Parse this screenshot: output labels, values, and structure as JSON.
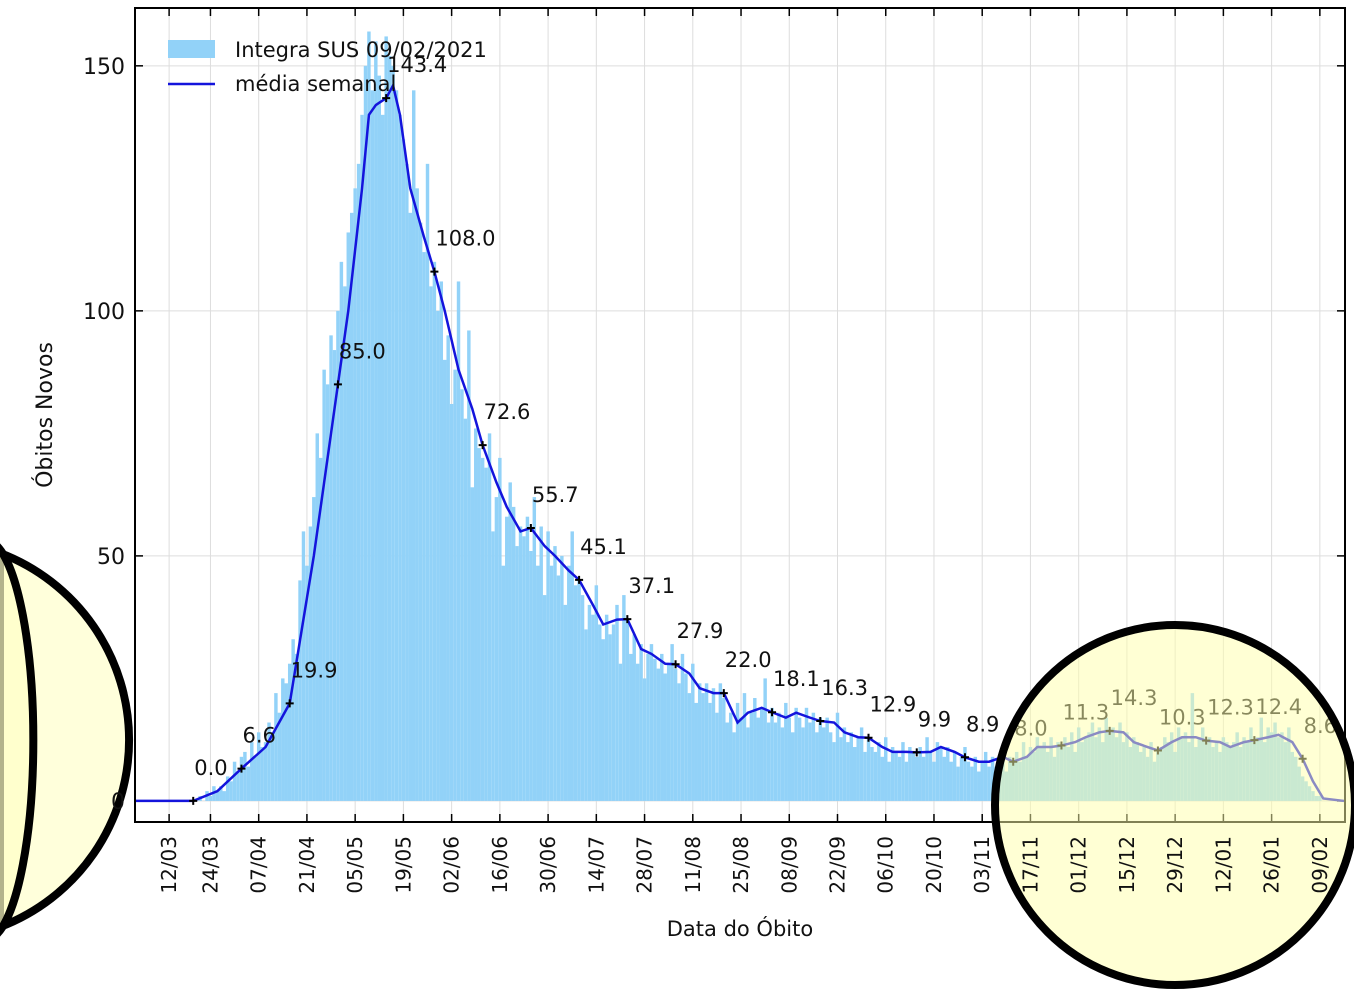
{
  "chart_data": {
    "type": "bar",
    "xlabel": "Data do Óbito",
    "ylabel": "Óbitos Novos",
    "xlim": [
      -9.9,
      341.3
    ],
    "ylim": [
      -4.3,
      161.8
    ],
    "xticks": [
      {
        "value": 0,
        "label": "12/03"
      },
      {
        "value": 12,
        "label": "24/03"
      },
      {
        "value": 26,
        "label": "07/04"
      },
      {
        "value": 40,
        "label": "21/04"
      },
      {
        "value": 54,
        "label": "05/05"
      },
      {
        "value": 68,
        "label": "19/05"
      },
      {
        "value": 82,
        "label": "02/06"
      },
      {
        "value": 96,
        "label": "16/06"
      },
      {
        "value": 110,
        "label": "30/06"
      },
      {
        "value": 124,
        "label": "14/07"
      },
      {
        "value": 138,
        "label": "28/07"
      },
      {
        "value": 152,
        "label": "11/08"
      },
      {
        "value": 166,
        "label": "25/08"
      },
      {
        "value": 180,
        "label": "08/09"
      },
      {
        "value": 194,
        "label": "22/09"
      },
      {
        "value": 208,
        "label": "06/10"
      },
      {
        "value": 222,
        "label": "20/10"
      },
      {
        "value": 236,
        "label": "03/11"
      },
      {
        "value": 250,
        "label": "17/11"
      },
      {
        "value": 264,
        "label": "01/12"
      },
      {
        "value": 278,
        "label": "15/12"
      },
      {
        "value": 292,
        "label": "29/12"
      },
      {
        "value": 306,
        "label": "12/01"
      },
      {
        "value": 320,
        "label": "26/01"
      },
      {
        "value": 334,
        "label": "09/02"
      }
    ],
    "yticks": [
      0,
      50,
      100,
      150
    ],
    "grid": true,
    "legend": "upper left",
    "series": [
      {
        "name": "Integra SUS 09/02/2021",
        "type": "bar",
        "color": "#92d2f8",
        "x": [
          8,
          9,
          10,
          11,
          12,
          13,
          14,
          15,
          16,
          17,
          18,
          19,
          20,
          21,
          22,
          23,
          24,
          25,
          26,
          27,
          28,
          29,
          30,
          31,
          32,
          33,
          34,
          35,
          36,
          37,
          38,
          39,
          40,
          41,
          42,
          43,
          44,
          45,
          46,
          47,
          48,
          49,
          50,
          51,
          52,
          53,
          54,
          55,
          56,
          57,
          58,
          59,
          60,
          61,
          62,
          63,
          64,
          65,
          66,
          67,
          68,
          69,
          70,
          71,
          72,
          73,
          74,
          75,
          76,
          77,
          78,
          79,
          80,
          81,
          82,
          83,
          84,
          85,
          86,
          87,
          88,
          89,
          90,
          91,
          92,
          93,
          94,
          95,
          96,
          97,
          98,
          99,
          100,
          101,
          102,
          103,
          104,
          105,
          106,
          107,
          108,
          109,
          110,
          111,
          112,
          113,
          114,
          115,
          116,
          117,
          118,
          119,
          120,
          121,
          122,
          123,
          124,
          125,
          126,
          127,
          128,
          129,
          130,
          131,
          132,
          133,
          134,
          135,
          136,
          137,
          138,
          139,
          140,
          141,
          142,
          143,
          144,
          145,
          146,
          147,
          148,
          149,
          150,
          151,
          152,
          153,
          154,
          155,
          156,
          157,
          158,
          159,
          160,
          161,
          162,
          163,
          164,
          165,
          166,
          167,
          168,
          169,
          170,
          171,
          172,
          173,
          174,
          175,
          176,
          177,
          178,
          179,
          180,
          181,
          182,
          183,
          184,
          185,
          186,
          187,
          188,
          189,
          190,
          191,
          192,
          193,
          194,
          195,
          196,
          197,
          198,
          199,
          200,
          201,
          202,
          203,
          204,
          205,
          206,
          207,
          208,
          209,
          210,
          211,
          212,
          213,
          214,
          215,
          216,
          217,
          218,
          219,
          220,
          221,
          222,
          223,
          224,
          225,
          226,
          227,
          228,
          229,
          230,
          231,
          232,
          233,
          234,
          235,
          236,
          237,
          238,
          239,
          240,
          241,
          242,
          243,
          244,
          245,
          246,
          247,
          248,
          249,
          250,
          251,
          252,
          253,
          254,
          255,
          256,
          257,
          258,
          259,
          260,
          261,
          262,
          263,
          264,
          265,
          266,
          267,
          268,
          269,
          270,
          271,
          272,
          273,
          274,
          275,
          276,
          277,
          278,
          279,
          280,
          281,
          282,
          283,
          284,
          285,
          286,
          287,
          288,
          289,
          290,
          291,
          292,
          293,
          294,
          295,
          296,
          297,
          298,
          299,
          300,
          301,
          302,
          303,
          304,
          305,
          306,
          307,
          308,
          309,
          310,
          311,
          312,
          313,
          314,
          315,
          316,
          317,
          318,
          319,
          320,
          321,
          322,
          323,
          324,
          325,
          326,
          327,
          328,
          329,
          330,
          331,
          332,
          333,
          334,
          335,
          336
        ],
        "values": [
          0,
          1,
          0,
          2,
          1,
          3,
          2,
          3,
          2,
          5,
          4,
          8,
          6,
          9,
          10,
          7,
          12,
          9,
          14,
          11,
          12,
          16,
          14,
          22,
          18,
          25,
          24,
          28,
          33,
          30,
          45,
          55,
          48,
          56,
          62,
          75,
          70,
          88,
          85,
          95,
          92,
          100,
          110,
          105,
          116,
          120,
          125,
          130,
          140,
          150,
          157,
          145,
          155,
          148,
          140,
          156,
          152,
          150,
          145,
          140,
          135,
          130,
          120,
          145,
          125,
          118,
          112,
          130,
          105,
          110,
          100,
          106,
          90,
          95,
          81,
          88,
          106,
          84,
          78,
          96,
          64,
          76,
          72,
          70,
          68,
          75,
          55,
          62,
          70,
          48,
          58,
          65,
          60,
          52,
          56,
          54,
          58,
          51,
          62,
          48,
          56,
          42,
          55,
          48,
          52,
          46,
          50,
          40,
          48,
          55,
          44,
          45,
          42,
          35,
          40,
          38,
          44,
          36,
          33,
          38,
          34,
          36,
          40,
          28,
          42,
          37,
          30,
          34,
          28,
          32,
          25,
          30,
          32,
          29,
          27,
          30,
          26,
          28,
          32,
          27,
          24,
          30,
          26,
          22,
          28,
          20,
          24,
          22,
          24,
          20,
          23,
          18,
          24,
          21,
          16,
          18,
          14,
          20,
          17,
          22,
          15,
          18,
          21,
          17,
          19,
          25,
          16,
          19,
          16,
          18,
          15,
          20,
          17,
          14,
          19,
          17,
          15,
          19,
          16,
          18,
          14,
          17,
          15,
          17,
          14,
          12,
          18,
          13,
          15,
          12,
          14,
          11,
          13,
          15,
          10,
          13,
          11,
          10,
          12,
          9,
          13,
          8,
          11,
          10,
          9,
          12,
          8,
          11,
          10,
          9,
          11,
          9,
          13,
          10,
          8,
          12,
          11,
          9,
          11,
          8,
          10,
          7,
          9,
          11,
          8,
          7,
          9,
          6,
          8,
          10,
          7,
          9,
          7,
          8,
          10,
          6,
          9,
          8,
          10,
          8,
          12,
          9,
          11,
          10,
          13,
          11,
          12,
          10,
          13,
          9,
          12,
          11,
          13,
          11,
          14,
          10,
          15,
          12,
          13,
          14,
          16,
          13,
          15,
          12,
          17,
          14,
          15,
          13,
          16,
          12,
          14,
          11,
          13,
          12,
          10,
          11,
          9,
          12,
          8,
          10,
          11,
          13,
          12,
          14,
          10,
          15,
          13,
          14,
          12,
          22,
          11,
          13,
          15,
          12,
          13,
          11,
          12,
          10,
          13,
          12,
          11,
          12,
          14,
          11,
          13,
          12,
          15,
          12,
          13,
          17,
          12,
          15,
          14,
          16,
          13,
          14,
          12,
          15,
          10,
          9,
          7,
          5,
          4,
          3,
          2,
          1,
          1,
          0,
          0
        ]
      },
      {
        "name": "média  semanal",
        "type": "line",
        "color": "#1414dc",
        "x": [
          -10,
          7,
          14,
          21,
          28,
          35,
          42,
          49,
          52,
          56,
          58,
          60,
          63,
          65,
          67,
          70,
          74,
          77,
          80,
          84,
          88,
          91,
          95,
          98,
          102,
          105,
          109,
          112,
          116,
          119,
          123,
          126,
          130,
          133,
          137,
          140,
          144,
          147,
          151,
          154,
          158,
          161,
          165,
          168,
          172,
          175,
          179,
          182,
          186,
          189,
          193,
          196,
          200,
          203,
          207,
          210,
          214,
          217,
          221,
          224,
          228,
          231,
          235,
          238,
          242,
          245,
          249,
          252,
          256,
          259,
          263,
          266,
          270,
          273,
          277,
          280,
          284,
          287,
          291,
          294,
          298,
          301,
          305,
          308,
          312,
          315,
          319,
          322,
          326,
          329,
          332,
          335,
          341
        ],
        "values": [
          0,
          0,
          2,
          6.6,
          11,
          19.9,
          50,
          85,
          100,
          125,
          140,
          142,
          143.4,
          146,
          140,
          125,
          115,
          108,
          100,
          88,
          80,
          72.6,
          65,
          60,
          55,
          55.7,
          52,
          50,
          47,
          45.1,
          40,
          36,
          37,
          37.1,
          31,
          30,
          28,
          27.9,
          26,
          23,
          22,
          22,
          16,
          18,
          19,
          18.1,
          17,
          18,
          17,
          16.3,
          16,
          14,
          13,
          12.9,
          11,
          10,
          10,
          9.9,
          10,
          11,
          10,
          8.9,
          8,
          8,
          9,
          8,
          9,
          11,
          11,
          11.3,
          12,
          13,
          14,
          14.3,
          14,
          12,
          11,
          10.3,
          12,
          13,
          13,
          12.3,
          12,
          11,
          12,
          12.4,
          13,
          13.5,
          12,
          8.6,
          4,
          0.5,
          0
        ]
      }
    ],
    "markers": {
      "x": [
        7,
        21,
        35,
        49,
        63,
        77,
        91,
        105,
        119,
        133,
        147,
        161,
        175,
        189,
        203,
        217,
        231,
        245,
        259,
        273,
        287,
        301,
        315,
        329
      ],
      "values": [
        0,
        6.6,
        19.9,
        85,
        143.4,
        108,
        72.6,
        55.7,
        45.1,
        37.1,
        27.9,
        22,
        18.1,
        16.3,
        12.9,
        9.9,
        8.9,
        8,
        11.3,
        14.3,
        10.3,
        12.3,
        12.4,
        8.6
      ],
      "value_labels": [
        "0.0",
        "6.6",
        "19.9",
        "85.0",
        "143.4",
        "108.0",
        "72.6",
        "55.7",
        "45.1",
        "37.1",
        "27.9",
        "22.0",
        "18.1",
        "16.3",
        "12.9",
        "9.9",
        "8.9",
        "8.0",
        "11.3",
        "14.3",
        "10.3",
        "12.3",
        "12.4",
        "8.6"
      ]
    }
  }
}
